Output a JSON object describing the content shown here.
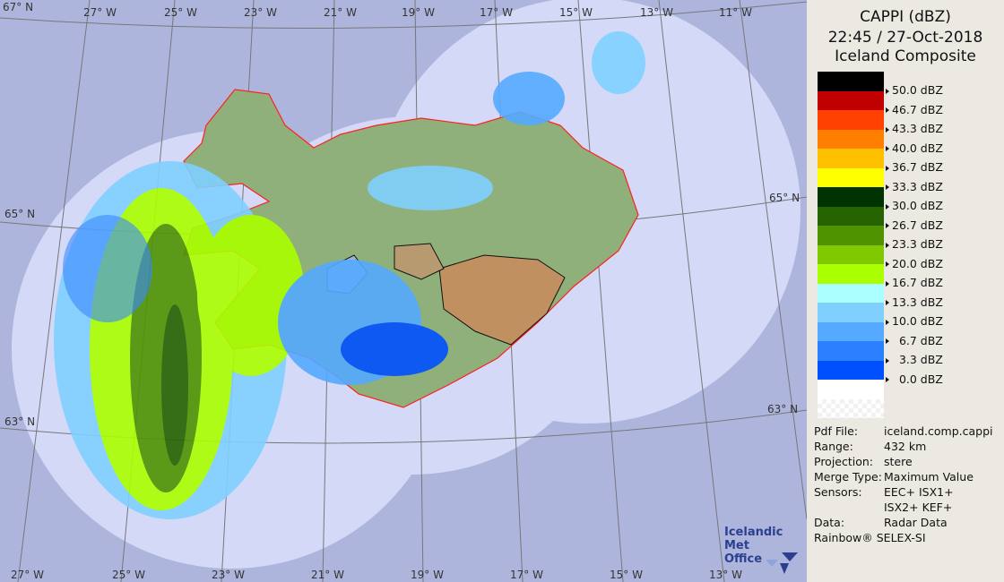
{
  "header": {
    "line1": "CAPPI (dBZ)",
    "line2": "22:45 / 27-Oct-2018",
    "line3": "Iceland Composite"
  },
  "legend": [
    {
      "color": "#000000",
      "label": "50.0 dBZ"
    },
    {
      "color": "#c00000",
      "label": "46.7 dBZ"
    },
    {
      "color": "#ff4000",
      "label": "43.3 dBZ"
    },
    {
      "color": "#ff8000",
      "label": "40.0 dBZ"
    },
    {
      "color": "#ffc000",
      "label": "36.7 dBZ"
    },
    {
      "color": "#ffff00",
      "label": "33.3 dBZ"
    },
    {
      "color": "#003300",
      "label": "30.0 dBZ"
    },
    {
      "color": "#256300",
      "label": "26.7 dBZ"
    },
    {
      "color": "#4f9400",
      "label": "23.3 dBZ"
    },
    {
      "color": "#80c800",
      "label": "20.0 dBZ"
    },
    {
      "color": "#aaff00",
      "label": "16.7 dBZ"
    },
    {
      "color": "#aaffff",
      "label": "13.3 dBZ"
    },
    {
      "color": "#80d0ff",
      "label": "10.0 dBZ"
    },
    {
      "color": "#55aaff",
      "label": "  6.7 dBZ"
    },
    {
      "color": "#2a80ff",
      "label": "  3.3 dBZ"
    },
    {
      "color": "#0050ff",
      "label": "  0.0 dBZ"
    },
    {
      "color": "#ffffff",
      "label": ""
    }
  ],
  "info": [
    {
      "key": "Pdf File:",
      "value": "iceland.comp.cappi"
    },
    {
      "key": "Range:",
      "value": "432 km"
    },
    {
      "key": "Projection:",
      "value": "stere"
    },
    {
      "key": "Merge Type:",
      "value": "Maximum Value"
    },
    {
      "key": "Sensors:",
      "value": "EEC+ ISX1+"
    },
    {
      "key": "",
      "value": "ISX2+ KEF+"
    },
    {
      "key": "Data:",
      "value": "Radar Data"
    }
  ],
  "credit": "Rainbow® SELEX-SI",
  "logo": {
    "line1": "Icelandic Met",
    "line2": "Office"
  },
  "map": {
    "top_lon_labels": [
      "27° W",
      "25° W",
      "23° W",
      "21° W",
      "19° W",
      "17° W",
      "15° W",
      "13° W",
      "11° W"
    ],
    "bottom_lon_labels": [
      "27° W",
      "25° W",
      "23° W",
      "21° W",
      "19° W",
      "17° W",
      "15° W",
      "13° W"
    ],
    "lat_left": [
      "67° N",
      "65° N",
      "63° N"
    ],
    "lat_right": [
      "65° N",
      "63° N"
    ],
    "colors": {
      "background": "#aeb5dc",
      "coverage": "#d4d9f8",
      "coast": "#ff2020"
    }
  }
}
